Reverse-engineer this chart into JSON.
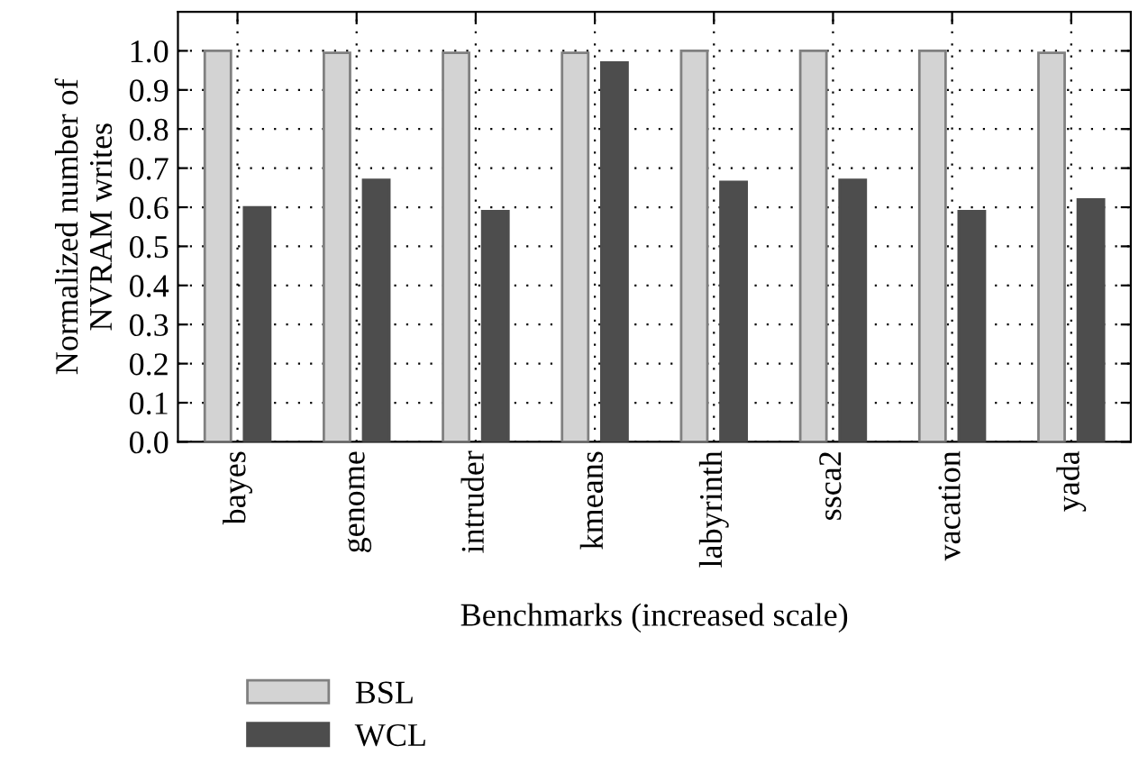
{
  "chart_data": {
    "type": "bar",
    "xlabel": "Benchmarks (increased scale)",
    "ylabel": "Normalized number of\nNVRAM writes",
    "categories": [
      "bayes",
      "genome",
      "intruder",
      "kmeans",
      "labyrinth",
      "ssca2",
      "vacation",
      "yada"
    ],
    "series": [
      {
        "name": "BSL",
        "color": "#d3d3d3",
        "values": [
          1.0,
          0.995,
          0.995,
          0.995,
          1.0,
          1.0,
          1.0,
          0.995
        ]
      },
      {
        "name": "WCL",
        "color": "#4d4d4d",
        "values": [
          0.6,
          0.67,
          0.59,
          0.97,
          0.665,
          0.67,
          0.59,
          0.62
        ]
      }
    ],
    "ylim": [
      0,
      1.1
    ],
    "yticks": [
      {
        "value": 0,
        "label": "0.0"
      },
      0.1,
      0.2,
      0.3,
      0.4,
      0.5,
      0.6,
      0.7,
      0.8,
      0.9,
      {
        "value": 1,
        "label": "1.0"
      }
    ],
    "grid": true,
    "legend": "bottom left"
  }
}
